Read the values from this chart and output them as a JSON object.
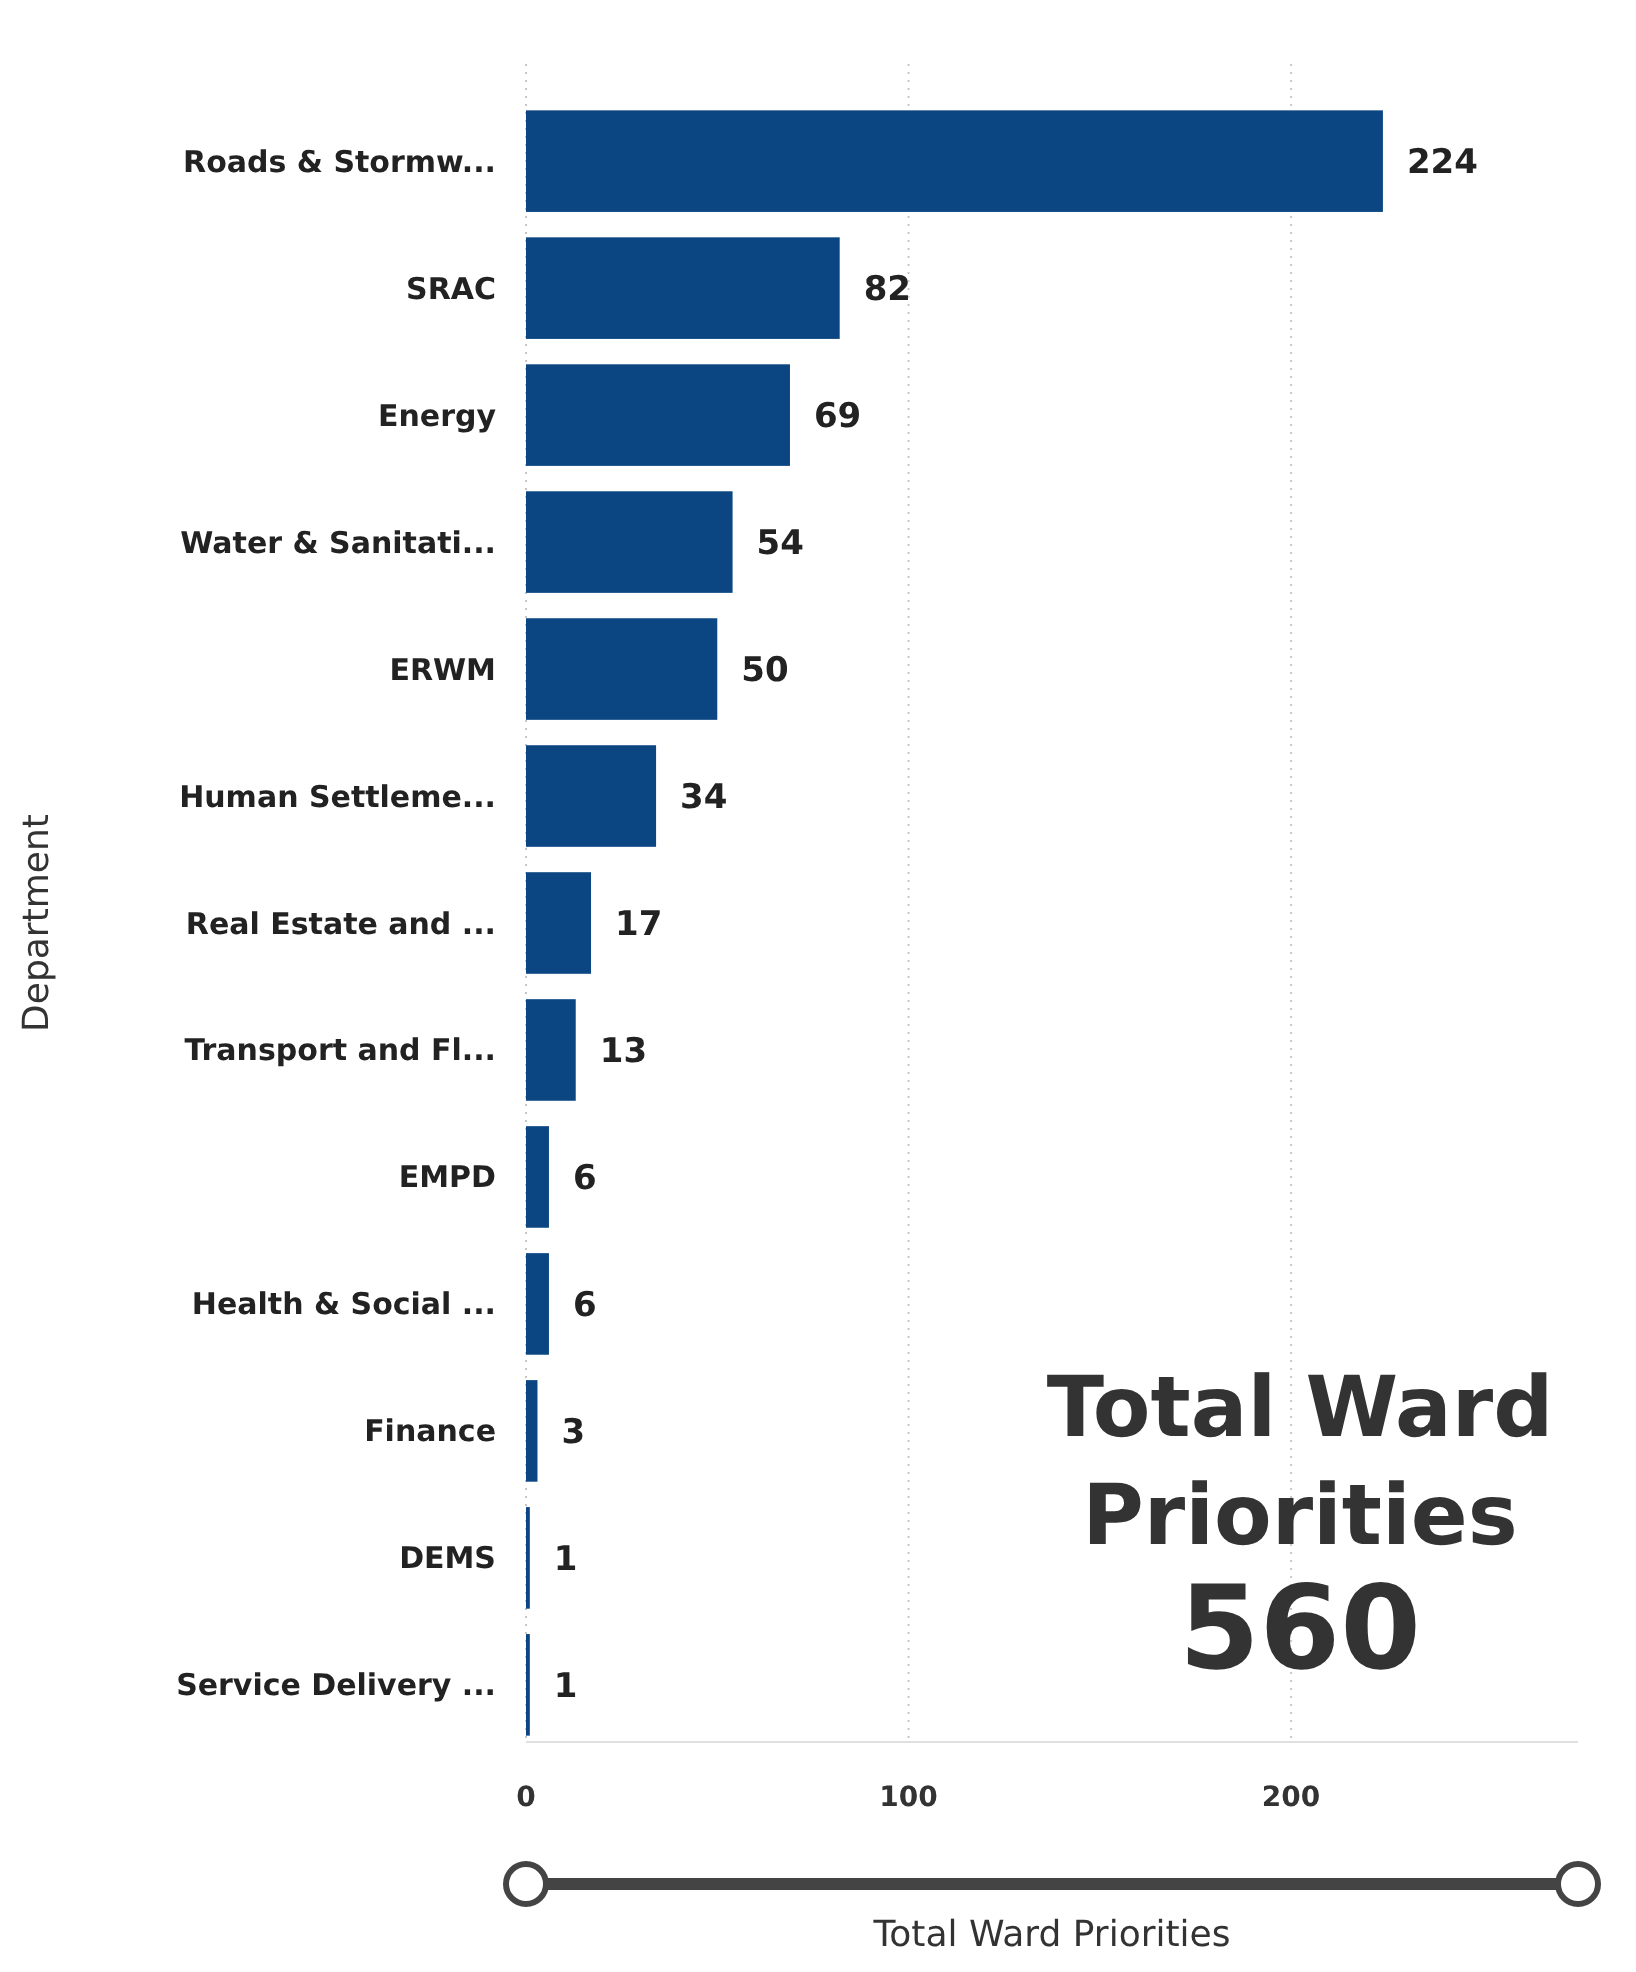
{
  "chart_data": {
    "type": "bar",
    "orientation": "horizontal",
    "xlabel": "Total Ward Priorities",
    "ylabel": "Department",
    "categories": [
      "Roads & Stormw...",
      "SRAC",
      "Energy",
      "Water & Sanitati...",
      "ERWM",
      "Human Settleme...",
      "Real Estate and ...",
      "Transport and Fl...",
      "EMPD",
      "Health & Social ...",
      "Finance",
      "DEMS",
      "Service Delivery ..."
    ],
    "values": [
      224,
      82,
      69,
      54,
      50,
      34,
      17,
      13,
      6,
      6,
      3,
      1,
      1
    ],
    "color": "#0b4682",
    "xlim": [
      0,
      275
    ],
    "xticks": [
      0,
      100,
      200
    ],
    "grid": "x",
    "data_labels": true,
    "annotations": [
      "Total Ward Priorities",
      "560"
    ]
  }
}
